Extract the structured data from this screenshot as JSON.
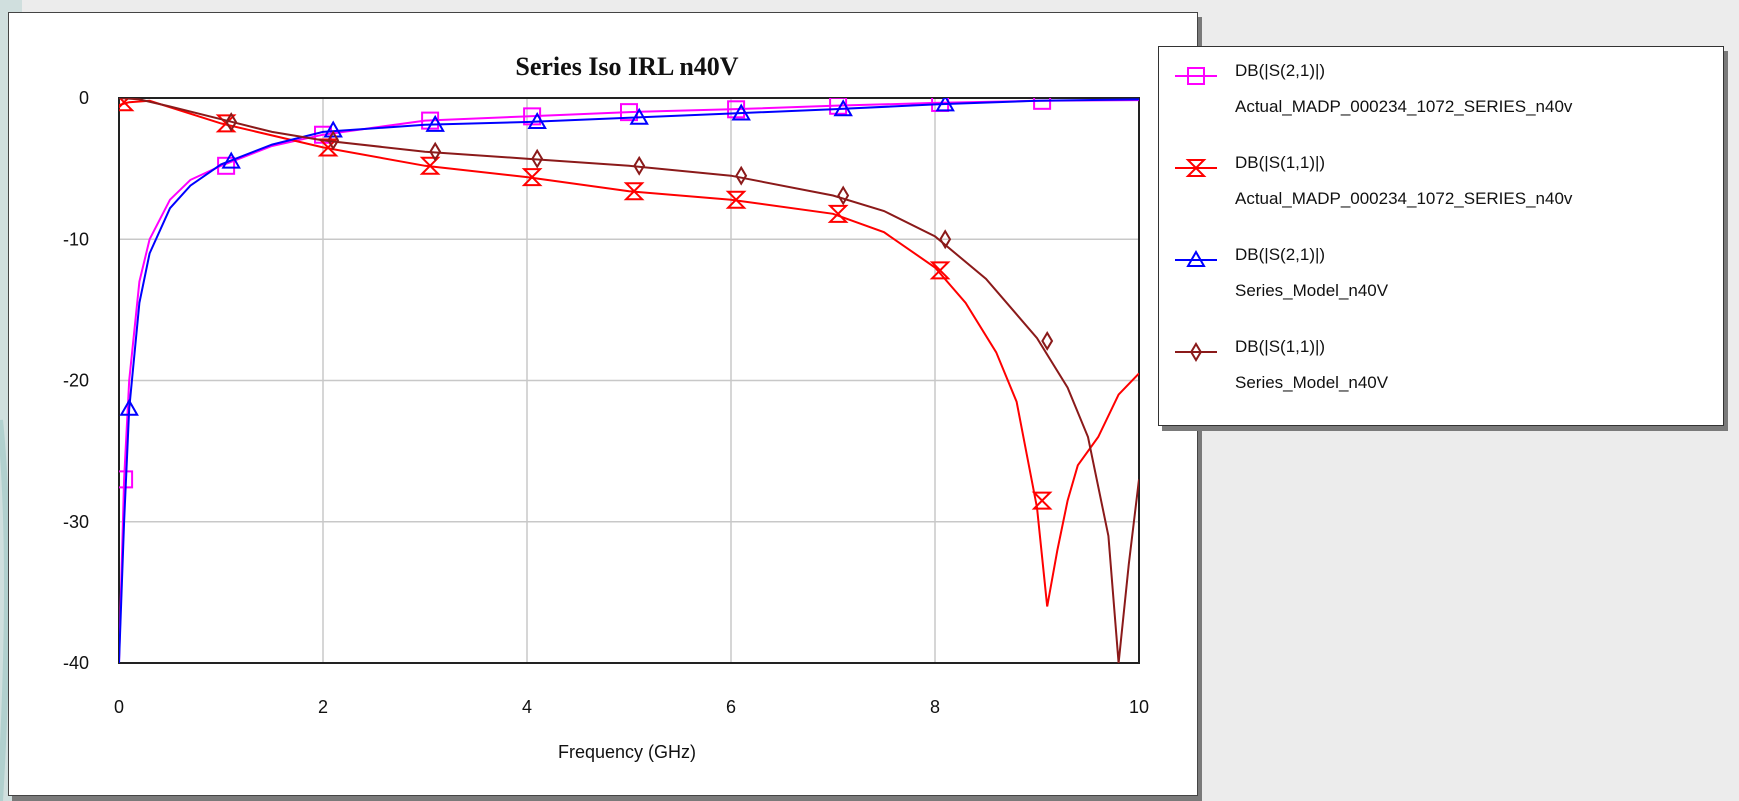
{
  "chart_data": {
    "type": "line",
    "title": "Series Iso IRL n40V",
    "xlabel": "Frequency (GHz)",
    "ylabel": "",
    "xlim": [
      0,
      10
    ],
    "ylim": [
      -40,
      0
    ],
    "x_ticks": [
      "0",
      "2",
      "4",
      "6",
      "8",
      "10"
    ],
    "y_ticks": [
      "0",
      "-10",
      "-20",
      "-30",
      "-40"
    ],
    "grid": true,
    "legend_position": "right",
    "series": [
      {
        "measurement": "DB(|S(2,1)|)",
        "name": "Actual_MADP_000234_1072_SERIES_n40v",
        "color": "#ff00ff",
        "marker": "square",
        "x": [
          0.0,
          0.05,
          0.1,
          0.2,
          0.3,
          0.5,
          0.7,
          1.0,
          1.5,
          2.0,
          3.0,
          4.0,
          5.0,
          6.0,
          7.0,
          8.0,
          9.0,
          10.0
        ],
        "y": [
          -40,
          -27,
          -20,
          -13,
          -10,
          -7.2,
          -5.8,
          -4.8,
          -3.4,
          -2.6,
          -1.6,
          -1.3,
          -1.0,
          -0.8,
          -0.55,
          -0.35,
          -0.2,
          -0.15
        ],
        "markers_x": [
          0.05,
          1.05,
          2.0,
          3.05,
          4.05,
          5.0,
          6.05,
          7.05,
          8.05,
          9.05
        ],
        "markers_y": [
          -27,
          -4.8,
          -2.6,
          -1.6,
          -1.3,
          -1.0,
          -0.8,
          -0.55,
          -0.35,
          -0.2
        ]
      },
      {
        "measurement": "DB(|S(1,1)|)",
        "name": "Actual_MADP_000234_1072_SERIES_n40v",
        "color": "#ff0000",
        "marker": "hourglass",
        "x": [
          0.0,
          0.1,
          0.3,
          1.0,
          2.0,
          3.0,
          4.0,
          5.0,
          6.0,
          7.0,
          7.5,
          8.0,
          8.3,
          8.6,
          8.8,
          9.0,
          9.1,
          9.2,
          9.3,
          9.4,
          9.6,
          9.8,
          10.0
        ],
        "y": [
          -0.5,
          -0.3,
          -0.2,
          -1.8,
          -3.5,
          -4.8,
          -5.6,
          -6.6,
          -7.2,
          -8.2,
          -9.5,
          -12.0,
          -14.5,
          -18.0,
          -21.5,
          -29.0,
          -36.0,
          -32.0,
          -28.5,
          -26.0,
          -24.0,
          -21.0,
          -19.5
        ],
        "markers_x": [
          0.05,
          1.05,
          2.05,
          3.05,
          4.05,
          5.05,
          6.05,
          7.05,
          8.05,
          9.05
        ],
        "markers_y": [
          -0.3,
          -1.8,
          -3.5,
          -4.8,
          -5.6,
          -6.6,
          -7.2,
          -8.2,
          -12.2,
          -28.5
        ]
      },
      {
        "measurement": "DB(|S(2,1)|)",
        "name": "Series_Model_n40V",
        "color": "#0000ff",
        "marker": "triangle",
        "x": [
          0.0,
          0.05,
          0.1,
          0.2,
          0.3,
          0.5,
          0.7,
          1.0,
          1.5,
          2.0,
          3.0,
          4.0,
          5.0,
          6.0,
          7.0,
          8.0,
          9.0,
          10.0
        ],
        "y": [
          -40,
          -30,
          -22,
          -14.5,
          -11,
          -7.8,
          -6.2,
          -4.7,
          -3.3,
          -2.4,
          -1.9,
          -1.7,
          -1.4,
          -1.1,
          -0.8,
          -0.45,
          -0.2,
          -0.1
        ],
        "markers_x": [
          0.1,
          1.1,
          2.1,
          3.1,
          4.1,
          5.1,
          6.1,
          7.1,
          8.1
        ],
        "markers_y": [
          -22,
          -4.5,
          -2.3,
          -1.9,
          -1.7,
          -1.4,
          -1.1,
          -0.8,
          -0.45
        ]
      },
      {
        "measurement": "DB(|S(1,1)|)",
        "name": "Series_Model_n40V",
        "color": "#8b1a1a",
        "marker": "diamond",
        "x": [
          0.0,
          0.2,
          0.5,
          1.0,
          1.5,
          2.0,
          3.0,
          4.0,
          5.0,
          6.0,
          7.0,
          7.5,
          8.0,
          8.5,
          9.0,
          9.3,
          9.5,
          9.7,
          9.8,
          9.9,
          10.0
        ],
        "y": [
          0.0,
          -0.1,
          -0.6,
          -1.5,
          -2.4,
          -3.0,
          -3.8,
          -4.3,
          -4.8,
          -5.5,
          -6.9,
          -8.0,
          -9.8,
          -12.8,
          -17.0,
          -20.5,
          -24.0,
          -31.0,
          -40.0,
          -33.0,
          -27.0
        ],
        "markers_x": [
          1.1,
          2.1,
          3.1,
          4.1,
          5.1,
          6.1,
          7.1,
          8.1,
          9.1
        ],
        "markers_y": [
          -1.7,
          -3.0,
          -3.8,
          -4.3,
          -4.8,
          -5.5,
          -6.9,
          -10.0,
          -17.2
        ]
      }
    ]
  }
}
